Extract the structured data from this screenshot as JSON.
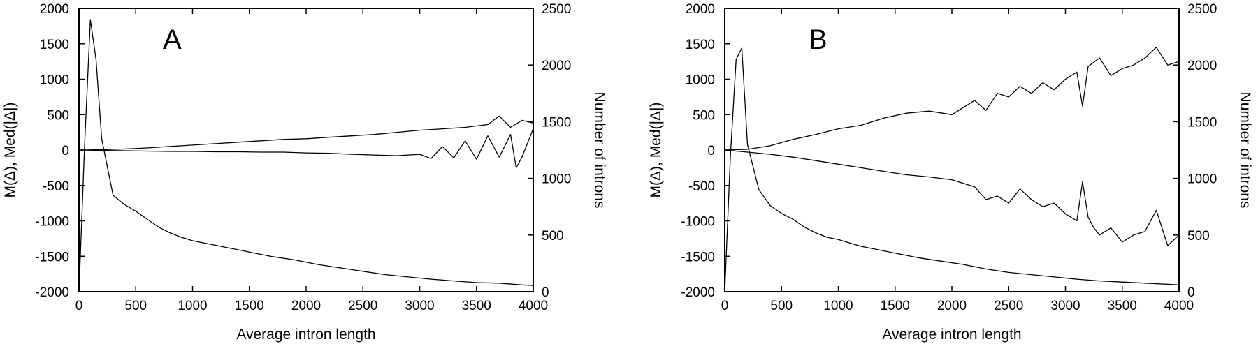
{
  "figure": {
    "panels": [
      {
        "letter": "A",
        "xlabel": "Average intron length",
        "ylabel_left": "M(Δ), Med(|Δ|)",
        "ylabel_right": "Number of introns"
      },
      {
        "letter": "B",
        "xlabel": "Average intron length",
        "ylabel_left": "M(Δ), Med(|Δ|)",
        "ylabel_right": "Number of introns"
      }
    ]
  },
  "chart_data": [
    {
      "type": "line",
      "panel_label": "A",
      "xlabel": "Average intron length",
      "ylabel": "M(Δ), Med(|Δ|)",
      "y2label": "Number of introns",
      "xlim": [
        0,
        4000
      ],
      "ylim": [
        -2000,
        2000
      ],
      "y2lim": [
        0,
        2500
      ],
      "xticks": [
        0,
        500,
        1000,
        1500,
        2000,
        2500,
        3000,
        3500,
        4000
      ],
      "yticks": [
        -2000,
        -1500,
        -1000,
        -500,
        0,
        500,
        1000,
        1500,
        2000
      ],
      "y2ticks": [
        0,
        500,
        1000,
        1500,
        2000,
        2500
      ],
      "grid": false,
      "series": [
        {
          "axis": "left",
          "x": [
            0,
            200,
            400,
            600,
            800,
            1000,
            1200,
            1400,
            1600,
            1800,
            2000,
            2200,
            2400,
            2600,
            2800,
            3000,
            3200,
            3400,
            3600,
            3700,
            3800,
            3900,
            4000
          ],
          "values": [
            0,
            5,
            15,
            30,
            50,
            70,
            90,
            110,
            130,
            150,
            160,
            180,
            200,
            220,
            250,
            280,
            300,
            320,
            360,
            480,
            320,
            420,
            380
          ]
        },
        {
          "axis": "left",
          "x": [
            0,
            200,
            400,
            600,
            800,
            1000,
            1200,
            1400,
            1600,
            1800,
            2000,
            2200,
            2400,
            2600,
            2800,
            3000,
            3100,
            3200,
            3300,
            3400,
            3500,
            3600,
            3700,
            3800,
            3850,
            3900,
            4000
          ],
          "values": [
            0,
            -5,
            -10,
            -15,
            -20,
            -20,
            -25,
            -25,
            -30,
            -30,
            -40,
            -45,
            -60,
            -70,
            -80,
            -60,
            -120,
            50,
            -110,
            130,
            -130,
            200,
            -100,
            220,
            -250,
            -100,
            300
          ]
        },
        {
          "axis": "right",
          "x": [
            0,
            50,
            100,
            150,
            200,
            300,
            400,
            500,
            600,
            700,
            800,
            900,
            1000,
            1100,
            1200,
            1300,
            1400,
            1500,
            1700,
            1900,
            2100,
            2300,
            2500,
            2700,
            2900,
            3100,
            3300,
            3500,
            3700,
            3900,
            4000
          ],
          "values": [
            0,
            1300,
            2400,
            2050,
            1350,
            850,
            770,
            710,
            640,
            570,
            520,
            480,
            450,
            430,
            410,
            390,
            370,
            350,
            310,
            280,
            240,
            210,
            180,
            150,
            130,
            110,
            95,
            80,
            75,
            60,
            55
          ]
        }
      ]
    },
    {
      "type": "line",
      "panel_label": "B",
      "xlabel": "Average intron length",
      "ylabel": "M(Δ), Med(|Δ|)",
      "y2label": "Number of introns",
      "xlim": [
        0,
        4000
      ],
      "ylim": [
        -2000,
        2000
      ],
      "y2lim": [
        0,
        2500
      ],
      "xticks": [
        0,
        500,
        1000,
        1500,
        2000,
        2500,
        3000,
        3500,
        4000
      ],
      "yticks": [
        -2000,
        -1500,
        -1000,
        -500,
        0,
        500,
        1000,
        1500,
        2000
      ],
      "y2ticks": [
        0,
        500,
        1000,
        1500,
        2000,
        2500
      ],
      "grid": false,
      "series": [
        {
          "axis": "left",
          "x": [
            0,
            200,
            400,
            600,
            800,
            1000,
            1200,
            1400,
            1600,
            1800,
            2000,
            2200,
            2300,
            2400,
            2500,
            2600,
            2700,
            2800,
            2900,
            3000,
            3100,
            3150,
            3200,
            3300,
            3400,
            3500,
            3600,
            3700,
            3800,
            3900,
            4000
          ],
          "values": [
            0,
            10,
            60,
            150,
            220,
            300,
            350,
            450,
            520,
            550,
            500,
            700,
            560,
            800,
            750,
            900,
            800,
            950,
            850,
            1000,
            1100,
            620,
            1180,
            1300,
            1050,
            1150,
            1200,
            1300,
            1450,
            1200,
            1250
          ]
        },
        {
          "axis": "left",
          "x": [
            0,
            200,
            400,
            600,
            800,
            1000,
            1200,
            1400,
            1600,
            1800,
            2000,
            2200,
            2300,
            2400,
            2500,
            2600,
            2700,
            2800,
            2900,
            3000,
            3100,
            3150,
            3200,
            3250,
            3300,
            3400,
            3500,
            3600,
            3700,
            3800,
            3900,
            4000
          ],
          "values": [
            0,
            -30,
            -60,
            -100,
            -150,
            -200,
            -250,
            -300,
            -350,
            -380,
            -420,
            -520,
            -700,
            -650,
            -750,
            -550,
            -700,
            -800,
            -750,
            -900,
            -1000,
            -450,
            -950,
            -1100,
            -1200,
            -1100,
            -1300,
            -1200,
            -1150,
            -850,
            -1350,
            -1200
          ]
        },
        {
          "axis": "right",
          "x": [
            0,
            50,
            100,
            150,
            200,
            300,
            400,
            500,
            600,
            700,
            800,
            900,
            1000,
            1100,
            1200,
            1300,
            1400,
            1500,
            1700,
            1900,
            2100,
            2300,
            2500,
            2700,
            2900,
            3100,
            3300,
            3500,
            3700,
            3900,
            4000
          ],
          "values": [
            0,
            1200,
            2050,
            2150,
            1300,
            900,
            760,
            690,
            640,
            570,
            520,
            480,
            460,
            430,
            400,
            380,
            360,
            340,
            300,
            270,
            240,
            200,
            170,
            150,
            130,
            110,
            95,
            85,
            75,
            65,
            60
          ]
        }
      ]
    }
  ]
}
